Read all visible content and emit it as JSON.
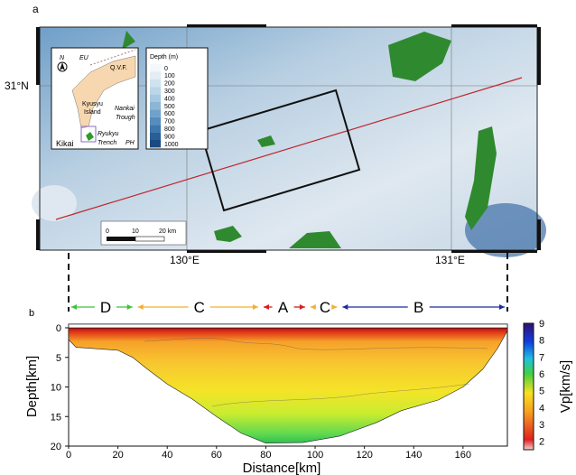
{
  "panel_a": {
    "label": "a",
    "lat_label": "31°N",
    "lon_labels": [
      "130°E",
      "131°E"
    ],
    "inset": {
      "labels": [
        "N",
        "EU",
        "Q.V.F.",
        "Kyusyu",
        "Island",
        "Nankai",
        "Trough",
        "Ryukyu",
        "Trench",
        "PH",
        "Kikai"
      ]
    },
    "depth_legend": {
      "title": "Depth (m)",
      "levels": [
        "0",
        "100",
        "200",
        "300",
        "400",
        "500",
        "600",
        "700",
        "800",
        "900",
        "1000"
      ],
      "colors": [
        "#f4f8fb",
        "#e3edf5",
        "#d0e2ef",
        "#bcd5e8",
        "#a6c8e0",
        "#8bb6d6",
        "#6fa2ca",
        "#558dbd",
        "#3d77ad",
        "#285f98",
        "#1a4a80"
      ]
    },
    "scale_bar": {
      "ticks": [
        "0",
        "10",
        "20 km"
      ]
    },
    "profile_line_color": "#c0262c"
  },
  "panel_b": {
    "label": "b",
    "segments": [
      {
        "label": "D",
        "color": "#3cc43c"
      },
      {
        "label": "C",
        "color": "#f0b030"
      },
      {
        "label": "A",
        "color": "#d42020"
      },
      {
        "label": "C",
        "color": "#f0b030"
      },
      {
        "label": "B",
        "color": "#1c2aa0"
      }
    ],
    "xlabel": "Distance[km]",
    "ylabel": "Depth[km]",
    "xticks": [
      "0",
      "20",
      "40",
      "60",
      "80",
      "100",
      "120",
      "140",
      "160"
    ],
    "yticks": [
      "0",
      "5",
      "10",
      "15",
      "20"
    ],
    "colorbar": {
      "label": "Vp[km/s]",
      "ticks": [
        "2",
        "3",
        "4",
        "5",
        "6",
        "7",
        "8",
        "9"
      ]
    }
  }
}
